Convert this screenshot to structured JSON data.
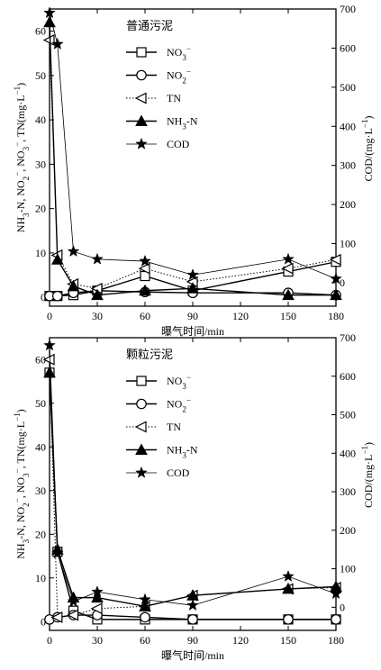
{
  "chart_data": [
    {
      "type": "line",
      "title": "普通污泥",
      "xlabel": "曝气时间/min",
      "ylabel_left": "NH3-N, NO2-, NO3-, TN(mg·L-1)",
      "ylabel_right": "COD/(mg·L-1)",
      "x_ticks": [
        "0",
        "30",
        "60",
        "90",
        "120",
        "150",
        "180"
      ],
      "left_ticks": [
        "0",
        "10",
        "20",
        "30",
        "40",
        "50",
        "60"
      ],
      "right_ticks": [
        "0",
        "100",
        "200",
        "300",
        "400",
        "500",
        "600",
        "700"
      ],
      "xlim": [
        0,
        180
      ],
      "ylim_left": [
        -2,
        65
      ],
      "ylim_right": [
        -60,
        700
      ],
      "legend_position": "top-center",
      "series": [
        {
          "name": "NO3-",
          "axis": "left",
          "marker": "square-open",
          "line": "solid",
          "x": [
            0,
            5,
            15,
            30,
            60,
            90,
            150,
            180
          ],
          "y": [
            0.3,
            0.3,
            0.5,
            1.5,
            4.8,
            1.5,
            5.8,
            8.0
          ]
        },
        {
          "name": "NO2-",
          "axis": "left",
          "marker": "circle-open",
          "line": "solid",
          "x": [
            0,
            5,
            15,
            30,
            60,
            90,
            150,
            180
          ],
          "y": [
            0.3,
            0.3,
            1.0,
            1.5,
            1.2,
            1.0,
            1.0,
            0.5
          ]
        },
        {
          "name": "TN",
          "axis": "left",
          "marker": "triangle-left-open",
          "line": "dotted",
          "x": [
            0,
            5,
            15,
            30,
            60,
            90,
            150,
            180
          ],
          "y": [
            58,
            9.5,
            3.0,
            2.0,
            6.5,
            3.5,
            6.5,
            8.5
          ]
        },
        {
          "name": "NH3-N",
          "axis": "left",
          "marker": "triangle-filled",
          "line": "solid",
          "x": [
            0,
            5,
            15,
            30,
            60,
            90,
            150,
            180
          ],
          "y": [
            62,
            8.5,
            2.5,
            0.5,
            1.5,
            2.0,
            0.5,
            0.5
          ]
        },
        {
          "name": "COD",
          "axis": "right",
          "marker": "star-filled",
          "line": "solid-thin",
          "x": [
            0,
            5,
            15,
            30,
            60,
            90,
            150,
            180
          ],
          "y": [
            690,
            610,
            80,
            60,
            55,
            20,
            60,
            10
          ]
        }
      ]
    },
    {
      "type": "line",
      "title": "颗粒污泥",
      "xlabel": "曝气时间/min",
      "ylabel_left": "NH3-N, NO2-, NO3-, TN(mg·L-1)",
      "ylabel_right": "COD/(mg·L-1)",
      "x_ticks": [
        "0",
        "30",
        "60",
        "90",
        "120",
        "150",
        "180"
      ],
      "left_ticks": [
        "0",
        "10",
        "20",
        "30",
        "40",
        "50",
        "60"
      ],
      "right_ticks": [
        "0",
        "100",
        "200",
        "300",
        "400",
        "500",
        "600",
        "700"
      ],
      "xlim": [
        0,
        180
      ],
      "ylim_left": [
        -2,
        65
      ],
      "ylim_right": [
        -60,
        700
      ],
      "legend_position": "top-center",
      "series": [
        {
          "name": "NO3-",
          "axis": "left",
          "marker": "square-open",
          "line": "solid",
          "x": [
            0,
            5,
            15,
            30,
            60,
            90,
            150,
            180
          ],
          "y": [
            57,
            16,
            2.5,
            0.5,
            0.5,
            0.5,
            0.5,
            0.5
          ]
        },
        {
          "name": "NO2-",
          "axis": "left",
          "marker": "circle-open",
          "line": "solid",
          "x": [
            0,
            5,
            15,
            30,
            60,
            90,
            150,
            180
          ],
          "y": [
            0.5,
            1.0,
            1.5,
            1.5,
            1.0,
            0.5,
            0.5,
            0.5
          ]
        },
        {
          "name": "TN",
          "axis": "left",
          "marker": "triangle-left-open",
          "line": "dotted",
          "x": [
            0,
            5,
            15,
            30,
            60,
            90,
            150,
            180
          ],
          "y": [
            60,
            1.0,
            1.5,
            3.0,
            3.5,
            6.0,
            7.5,
            7.8
          ]
        },
        {
          "name": "NH3-N",
          "axis": "left",
          "marker": "triangle-filled",
          "line": "solid",
          "x": [
            0,
            5,
            15,
            30,
            60,
            90,
            150,
            180
          ],
          "y": [
            57,
            16.5,
            5.5,
            5.5,
            3.5,
            6.0,
            7.5,
            8.0
          ]
        },
        {
          "name": "COD",
          "axis": "right",
          "marker": "star-filled",
          "line": "solid-thin",
          "x": [
            0,
            5,
            15,
            30,
            60,
            90,
            150,
            180
          ],
          "y": [
            680,
            140,
            15,
            40,
            20,
            5,
            80,
            35
          ]
        }
      ]
    }
  ]
}
